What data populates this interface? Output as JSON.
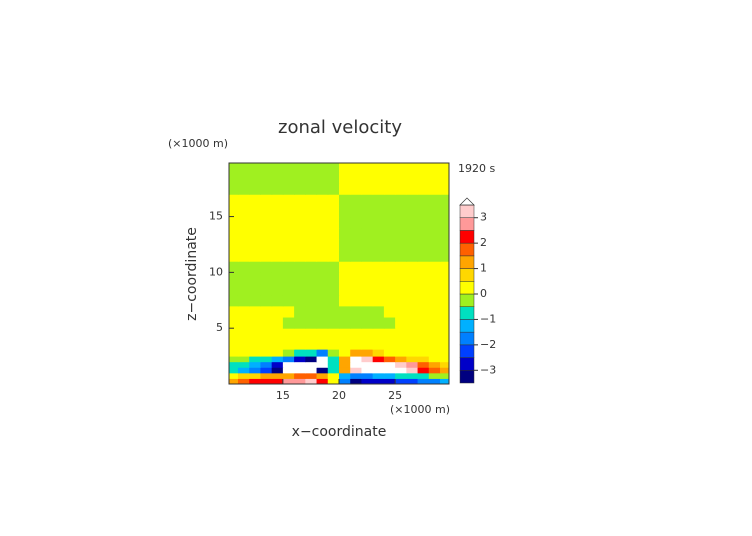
{
  "chart_data": {
    "type": "contour",
    "title": "zonal velocity",
    "x_label": "x−coordinate",
    "y_label": "z−coordinate",
    "x_unit": "(×1000 m)",
    "y_unit": "(×1000 m)",
    "time_label": "1920 s",
    "xlim": [
      10.2,
      29.8
    ],
    "ylim": [
      0,
      19.8
    ],
    "xticks": [
      15,
      20,
      25
    ],
    "yticks": [
      5,
      10,
      15
    ],
    "x": [
      10.5,
      11.5,
      12.5,
      13.5,
      14.5,
      15.5,
      16.5,
      17.5,
      18.5,
      19.5,
      20.5,
      21.5,
      22.5,
      23.5,
      24.5,
      25.5,
      26.5,
      27.5,
      28.5,
      29.5
    ],
    "y": [
      0.25,
      0.75,
      1.25,
      1.75,
      2.25,
      2.75,
      3.5,
      4.5,
      5.5,
      6.5,
      7.5,
      8.5,
      9.5,
      10.5,
      11.5,
      12.5,
      13.5,
      14.5,
      15.5,
      16.5,
      17.5,
      18.5,
      19.5
    ],
    "z": [
      [
        1.2,
        1.6,
        2,
        2.2,
        2.4,
        2.6,
        2.8,
        3,
        2,
        0,
        -2,
        -3.2,
        -3,
        -2.8,
        -2.6,
        -2.4,
        -2.2,
        -2,
        -1.6,
        -1.2
      ],
      [
        0.4,
        0.6,
        0.8,
        1,
        1.2,
        1.4,
        1.6,
        1.8,
        1.2,
        0,
        -1.2,
        -1.8,
        -1.6,
        -1.4,
        -1.2,
        -1,
        -0.8,
        -0.6,
        -0.4,
        -0.2
      ],
      [
        -0.8,
        -1.2,
        -1.6,
        -2.4,
        -3.2,
        -3.6,
        -3.8,
        -3.9,
        -3.4,
        -1,
        1,
        3.4,
        3.9,
        3.8,
        3.7,
        3.6,
        3.2,
        2.4,
        1.6,
        1
      ],
      [
        -0.6,
        -1,
        -1.4,
        -2,
        -2.8,
        -3.6,
        -3.8,
        -3.9,
        -3.6,
        -1,
        1,
        3.6,
        3.9,
        3.8,
        3.7,
        3.4,
        2.6,
        1.6,
        1,
        0.6
      ],
      [
        -0.2,
        -0.4,
        -0.6,
        -0.8,
        -1.2,
        -1.8,
        -2.6,
        -3.4,
        -3.7,
        -1,
        1,
        3.6,
        3.2,
        2.4,
        1.6,
        1.2,
        0.8,
        0.6,
        0.4,
        0.3
      ],
      [
        0.3,
        0.3,
        0.2,
        0.2,
        0.1,
        -0.2,
        -0.6,
        -1,
        -1.6,
        -0.4,
        0.4,
        1.4,
        1,
        0.6,
        0.4,
        0.3,
        0.3,
        0.3,
        0.3,
        0.3
      ],
      [
        0.2,
        0.2,
        0.2,
        0.2,
        0.2,
        0.2,
        0.2,
        0.2,
        0.2,
        0.2,
        0.2,
        0.2,
        0.2,
        0.2,
        0.2,
        0.2,
        0.2,
        0.2,
        0.2,
        0.2
      ],
      [
        0.2,
        0.2,
        0.2,
        0.2,
        0.2,
        0.2,
        0.2,
        0.2,
        0.2,
        0.2,
        0.2,
        0.2,
        0.2,
        0.2,
        0.2,
        0.2,
        0.2,
        0.2,
        0.2,
        0.2
      ],
      [
        0.2,
        0.2,
        0.2,
        0.2,
        0.2,
        -0.1,
        -0.1,
        -0.1,
        -0.1,
        -0.1,
        -0.1,
        -0.1,
        -0.1,
        -0.1,
        -0.1,
        0.2,
        0.2,
        0.2,
        0.2,
        0.2
      ],
      [
        0.2,
        0.2,
        0.2,
        0.2,
        0.2,
        0.2,
        -0.1,
        -0.1,
        -0.1,
        -0.1,
        -0.1,
        -0.1,
        -0.1,
        -0.1,
        0.2,
        0.2,
        0.2,
        0.2,
        0.2,
        0.2
      ],
      [
        -0.1,
        -0.1,
        -0.1,
        -0.1,
        -0.1,
        -0.1,
        -0.1,
        -0.1,
        -0.1,
        -0.1,
        0.2,
        0.2,
        0.2,
        0.2,
        0.2,
        0.2,
        0.2,
        0.2,
        0.2,
        0.2
      ],
      [
        -0.1,
        -0.1,
        -0.1,
        -0.1,
        -0.1,
        -0.1,
        -0.1,
        -0.1,
        -0.1,
        -0.1,
        0.2,
        0.2,
        0.2,
        0.2,
        0.2,
        0.2,
        0.2,
        0.2,
        0.2,
        0.2
      ],
      [
        -0.1,
        -0.1,
        -0.1,
        -0.1,
        -0.1,
        -0.1,
        -0.1,
        -0.1,
        -0.1,
        -0.1,
        0.2,
        0.2,
        0.2,
        0.2,
        0.2,
        0.2,
        0.2,
        0.2,
        0.2,
        0.2
      ],
      [
        -0.1,
        -0.1,
        -0.1,
        -0.1,
        -0.1,
        -0.1,
        -0.1,
        -0.1,
        -0.1,
        -0.1,
        0.2,
        0.2,
        0.2,
        0.2,
        0.2,
        0.2,
        0.2,
        0.2,
        0.2,
        0.2
      ],
      [
        0.2,
        0.2,
        0.2,
        0.2,
        0.2,
        0.2,
        0.2,
        0.2,
        0.2,
        0.2,
        -0.1,
        -0.1,
        -0.1,
        -0.1,
        -0.1,
        -0.1,
        -0.1,
        -0.1,
        -0.1,
        -0.1
      ],
      [
        0.2,
        0.2,
        0.2,
        0.2,
        0.2,
        0.2,
        0.2,
        0.2,
        0.2,
        0.2,
        -0.1,
        -0.1,
        -0.1,
        -0.1,
        -0.1,
        -0.1,
        -0.1,
        -0.1,
        -0.1,
        -0.1
      ],
      [
        0.2,
        0.2,
        0.2,
        0.2,
        0.2,
        0.2,
        0.2,
        0.2,
        0.2,
        0.2,
        -0.1,
        -0.1,
        -0.1,
        -0.1,
        -0.1,
        -0.1,
        -0.1,
        -0.1,
        -0.1,
        -0.1
      ],
      [
        0.2,
        0.2,
        0.2,
        0.2,
        0.2,
        0.2,
        0.2,
        0.2,
        0.2,
        0.2,
        -0.1,
        -0.1,
        -0.1,
        -0.1,
        -0.1,
        -0.1,
        -0.1,
        -0.1,
        -0.1,
        -0.1
      ],
      [
        0.2,
        0.2,
        0.2,
        0.2,
        0.2,
        0.2,
        0.2,
        0.2,
        0.2,
        0.2,
        -0.1,
        -0.1,
        -0.1,
        -0.1,
        -0.1,
        -0.1,
        -0.1,
        -0.1,
        -0.1,
        -0.1
      ],
      [
        0.2,
        0.2,
        0.2,
        0.2,
        0.2,
        0.2,
        0.2,
        0.2,
        0.2,
        0.2,
        -0.1,
        -0.1,
        -0.1,
        -0.1,
        -0.1,
        -0.1,
        -0.1,
        -0.1,
        -0.1,
        -0.1
      ],
      [
        -0.1,
        -0.1,
        -0.1,
        -0.1,
        -0.1,
        -0.1,
        -0.1,
        -0.1,
        -0.1,
        -0.1,
        0.2,
        0.2,
        0.2,
        0.2,
        0.2,
        0.2,
        0.2,
        0.2,
        0.2,
        0.2
      ],
      [
        -0.1,
        -0.1,
        -0.1,
        -0.1,
        -0.1,
        -0.1,
        -0.1,
        -0.1,
        -0.1,
        -0.1,
        0.2,
        0.2,
        0.2,
        0.2,
        0.2,
        0.2,
        0.2,
        0.2,
        0.2,
        0.2
      ],
      [
        -0.1,
        -0.1,
        -0.1,
        -0.1,
        -0.1,
        -0.1,
        -0.1,
        -0.1,
        -0.1,
        -0.1,
        0.2,
        0.2,
        0.2,
        0.2,
        0.2,
        0.2,
        0.2,
        0.2,
        0.2,
        0.2
      ]
    ],
    "levels": [
      -3.5,
      -3,
      -2.5,
      -2,
      -1.5,
      -1,
      -0.5,
      0,
      0.5,
      1,
      1.5,
      2,
      2.5,
      3,
      3.5
    ],
    "colors": [
      "#000080",
      "#0000c8",
      "#0040ff",
      "#0080ff",
      "#00b0ff",
      "#00e0c0",
      "#a0f020",
      "#ffff00",
      "#ffd700",
      "#ffa500",
      "#ff6000",
      "#ff0000",
      "#ff9999",
      "#ffcccc"
    ],
    "out_of_range_color": "#ffffff",
    "colorbar_ticks": [
      {
        "value": -3,
        "label": "−3"
      },
      {
        "value": -2,
        "label": "−2"
      },
      {
        "value": -1,
        "label": "−1"
      },
      0,
      1,
      2,
      3
    ]
  }
}
